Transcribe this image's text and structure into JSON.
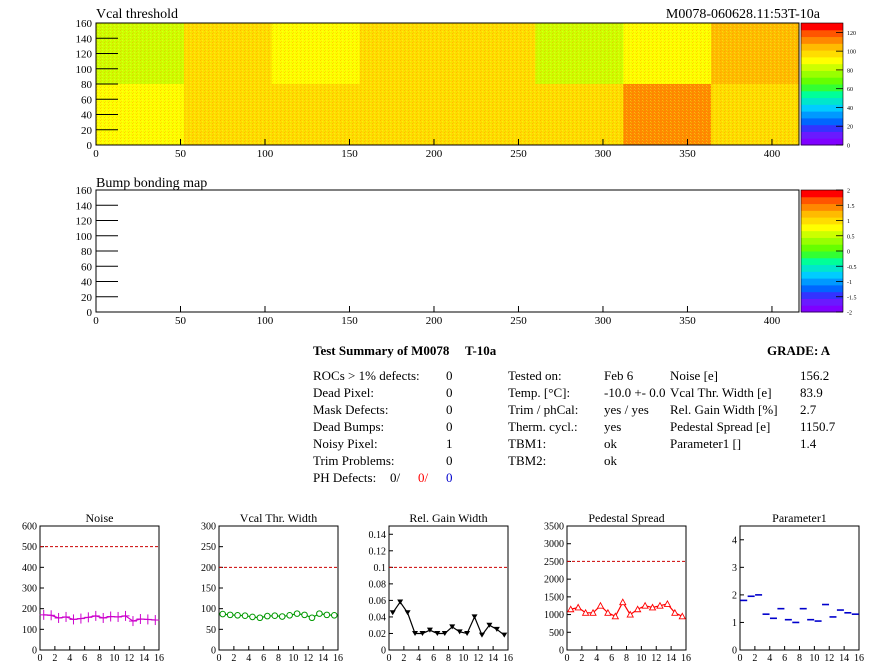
{
  "header": {
    "map1_title": "Vcal threshold",
    "module_id": "M0078-060628.11:53T-10a",
    "map2_title": "Bump bonding map"
  },
  "maps": {
    "x_ticks": [
      "0",
      "50",
      "100",
      "150",
      "200",
      "250",
      "300",
      "350",
      "400"
    ],
    "y_ticks": [
      "0",
      "20",
      "40",
      "60",
      "80",
      "100",
      "120",
      "140",
      "160"
    ],
    "xlim": [
      0,
      416
    ],
    "ylim": [
      0,
      160
    ],
    "vcal_scale": {
      "ticks": [
        "0",
        "20",
        "40",
        "60",
        "80",
        "100",
        "120"
      ],
      "zlim": [
        0,
        130
      ]
    },
    "bump_scale": {
      "ticks": [
        "-2",
        "-1.5",
        "-1",
        "-0.5",
        "0",
        "0.5",
        "1",
        "1.5",
        "2"
      ],
      "zlim": [
        -2,
        2
      ]
    },
    "palette": [
      "#7f00ff",
      "#6a1aff",
      "#3333ff",
      "#0066ff",
      "#0099ff",
      "#00ccff",
      "#00e6cc",
      "#00ff99",
      "#33ff33",
      "#66ff00",
      "#99ff00",
      "#ccff00",
      "#ffff00",
      "#ffdd00",
      "#ffbb00",
      "#ff8800",
      "#ff5500",
      "#ff0000"
    ]
  },
  "summary": {
    "title": "Test Summary of M0078",
    "temp_label": "T-10a",
    "grade": "GRADE:  A",
    "left": [
      {
        "label": "ROCs > 1% defects:",
        "value": "0"
      },
      {
        "label": "Dead Pixel:",
        "value": "0"
      },
      {
        "label": "Mask Defects:",
        "value": "0"
      },
      {
        "label": "Dead Bumps:",
        "value": "0"
      },
      {
        "label": "Noisy Pixel:",
        "value": "1"
      },
      {
        "label": "Trim Problems:",
        "value": "0"
      }
    ],
    "ph_defects": {
      "label": "PH Defects:",
      "v1": "0/",
      "v2": "0/",
      "v3": "0"
    },
    "middle": [
      {
        "label": "Tested on:",
        "value": "Feb 6"
      },
      {
        "label": "Temp. [°C]:",
        "value": "-10.0 +- 0.0"
      },
      {
        "label": "Trim / phCal:",
        "value": "yes / yes"
      },
      {
        "label": "Therm. cycl.:",
        "value": "yes"
      },
      {
        "label": "TBM1:",
        "value": "ok"
      },
      {
        "label": "TBM2:",
        "value": "ok"
      }
    ],
    "right": [
      {
        "label": "Noise [e]",
        "value": "156.2"
      },
      {
        "label": "Vcal Thr. Width [e]",
        "value": "83.9"
      },
      {
        "label": "Rel. Gain Width [%]",
        "value": "2.7"
      },
      {
        "label": "Pedestal Spread [e]",
        "value": "1150.7"
      },
      {
        "label": "Parameter1 []",
        "value": "1.4"
      }
    ]
  },
  "chart_data": [
    {
      "type": "heatmap",
      "title": "Vcal threshold",
      "xlim": [
        0,
        416
      ],
      "ylim": [
        0,
        160
      ],
      "zlim": [
        0,
        130
      ],
      "roc_grid": {
        "cols": 8,
        "rows": 2
      },
      "roc_mean_values": [
        [
          85,
          95,
          90,
          98,
          95,
          85,
          92,
          108
        ],
        [
          92,
          95,
          100,
          95,
          95,
          95,
          112,
          100
        ]
      ],
      "colors": {
        "1": "#00ff00",
        "2": "#ff0000",
        "3": "#0000ff",
        "4": "#000000",
        "5": "#ff00ff"
      }
    },
    {
      "type": "heatmap",
      "title": "Bump bonding map",
      "xlim": [
        0,
        416
      ],
      "ylim": [
        0,
        160
      ],
      "zlim": [
        -2,
        2
      ]
    },
    {
      "type": "line",
      "title": "Noise",
      "x": [
        0,
        1,
        2,
        3,
        4,
        5,
        6,
        7,
        8,
        9,
        10,
        11,
        12,
        13,
        14,
        15
      ],
      "values": [
        170,
        168,
        155,
        160,
        148,
        152,
        158,
        165,
        155,
        162,
        160,
        165,
        140,
        150,
        148,
        145
      ],
      "ylim": [
        0,
        600
      ],
      "yticks": [
        "0",
        "100",
        "200",
        "300",
        "400",
        "500",
        "600"
      ],
      "xticks": [
        "0",
        "2",
        "4",
        "6",
        "8",
        "10",
        "12",
        "14",
        "16"
      ],
      "limit": 500,
      "marker": "plus",
      "color": "#cc00cc"
    },
    {
      "type": "line",
      "title": "Vcal Thr. Width",
      "x": [
        0,
        1,
        2,
        3,
        4,
        5,
        6,
        7,
        8,
        9,
        10,
        11,
        12,
        13,
        14,
        15
      ],
      "values": [
        87,
        85,
        84,
        83,
        80,
        78,
        82,
        83,
        81,
        84,
        88,
        85,
        78,
        88,
        85,
        84
      ],
      "ylim": [
        0,
        300
      ],
      "yticks": [
        "0",
        "50",
        "100",
        "150",
        "200",
        "250",
        "300"
      ],
      "xticks": [
        "0",
        "2",
        "4",
        "6",
        "8",
        "10",
        "12",
        "14",
        "16"
      ],
      "limit": 200,
      "marker": "circle",
      "color": "#009900"
    },
    {
      "type": "line",
      "title": "Rel. Gain Width",
      "x": [
        0,
        1,
        2,
        3,
        4,
        5,
        6,
        7,
        8,
        9,
        10,
        11,
        12,
        13,
        14,
        15
      ],
      "values": [
        0.045,
        0.058,
        0.045,
        0.02,
        0.02,
        0.024,
        0.02,
        0.02,
        0.028,
        0.022,
        0.02,
        0.04,
        0.018,
        0.03,
        0.025,
        0.018
      ],
      "ylim": [
        0,
        0.15
      ],
      "yticks": [
        "0",
        "0.02",
        "0.04",
        "0.06",
        "0.08",
        "0.1",
        "0.12",
        "0.14"
      ],
      "xticks": [
        "0",
        "2",
        "4",
        "6",
        "8",
        "10",
        "12",
        "14",
        "16"
      ],
      "limit": 0.1,
      "marker": "triangle",
      "color": "#000000"
    },
    {
      "type": "line",
      "title": "Pedestal Spread",
      "x": [
        0,
        1,
        2,
        3,
        4,
        5,
        6,
        7,
        8,
        9,
        10,
        11,
        12,
        13,
        14,
        15
      ],
      "values": [
        1150,
        1200,
        1050,
        1050,
        1250,
        1050,
        950,
        1350,
        1000,
        1150,
        1250,
        1200,
        1250,
        1300,
        1050,
        950
      ],
      "ylim": [
        0,
        3500
      ],
      "yticks": [
        "0",
        "500",
        "1000",
        "1500",
        "2000",
        "2500",
        "3000",
        "3500"
      ],
      "xticks": [
        "0",
        "2",
        "4",
        "6",
        "8",
        "10",
        "12",
        "14",
        "16"
      ],
      "limit": 2500,
      "marker": "triangle-open",
      "color": "#ff0000"
    },
    {
      "type": "scatter",
      "title": "Parameter1",
      "x": [
        0,
        1,
        2,
        3,
        4,
        5,
        6,
        7,
        8,
        9,
        10,
        11,
        12,
        13,
        14,
        15
      ],
      "values": [
        1.8,
        1.95,
        2.0,
        1.3,
        1.15,
        1.5,
        1.1,
        1.0,
        1.5,
        1.1,
        1.05,
        1.65,
        1.2,
        1.45,
        1.35,
        1.3
      ],
      "ylim": [
        0,
        4.5
      ],
      "yticks": [
        "0",
        "1",
        "2",
        "3",
        "4"
      ],
      "xticks": [
        "0",
        "2",
        "4",
        "6",
        "8",
        "10",
        "12",
        "14",
        "16"
      ],
      "marker": "hline",
      "color": "#0000cc"
    }
  ]
}
